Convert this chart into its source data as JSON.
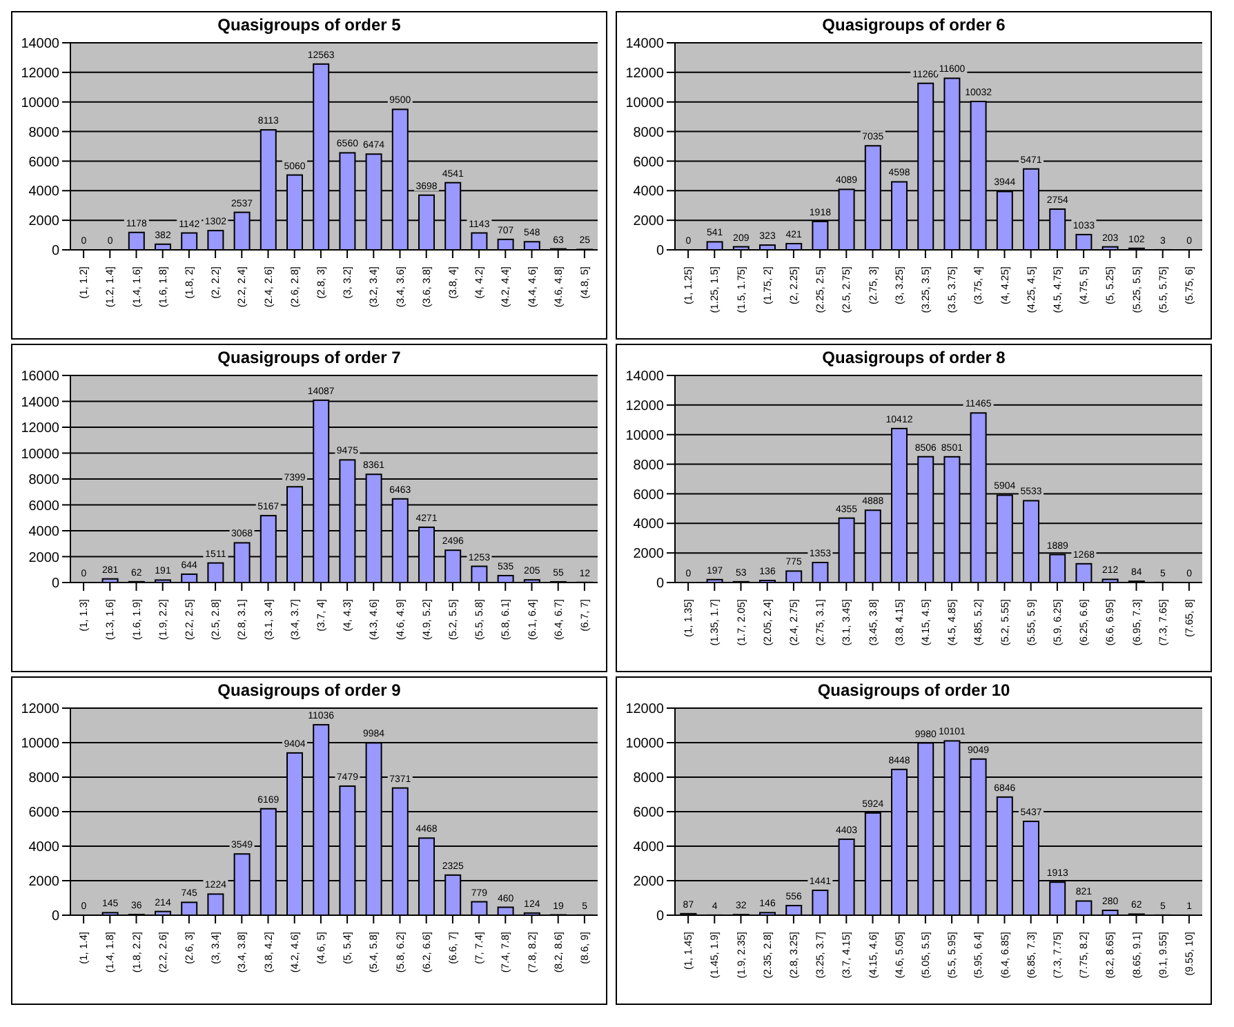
{
  "chart_data": [
    {
      "type": "bar",
      "title": "Quasigroups of order 5",
      "categories": [
        "(1, 1.2]",
        "(1.2, 1.4]",
        "(1.4, 1.6]",
        "(1.6, 1.8]",
        "(1.8, 2]",
        "(2, 2.2]",
        "(2.2, 2.4]",
        "(2.4, 2.6]",
        "(2.6, 2.8]",
        "(2.8, 3]",
        "(3, 3.2]",
        "(3.2, 3.4]",
        "(3.4, 3.6]",
        "(3.6, 3.8]",
        "(3.8, 4]",
        "(4, 4.2]",
        "(4.2, 4.4]",
        "(4.4, 4.6]",
        "(4.6, 4.8]",
        "(4.8, 5]"
      ],
      "values": [
        0,
        0,
        1178,
        382,
        1142,
        1302,
        2537,
        8113,
        5060,
        12563,
        6560,
        6474,
        9500,
        3698,
        4541,
        1143,
        707,
        548,
        63,
        25
      ],
      "color": "#9999ff",
      "ylim": [
        0,
        14000
      ],
      "yticks": [
        0,
        2000,
        4000,
        6000,
        8000,
        10000,
        12000,
        14000
      ],
      "grid": "y",
      "data_labels": true
    },
    {
      "type": "bar",
      "title": "Quasigroups of order 6",
      "categories": [
        "(1, 1.25]",
        "(1.25, 1.5]",
        "(1.5, 1.75]",
        "(1.75, 2]",
        "(2, 2.25]",
        "(2.25, 2.5]",
        "(2.5, 2.75]",
        "(2.75, 3]",
        "(3, 3.25]",
        "(3.25, 3.5]",
        "(3.5, 3.75]",
        "(3.75, 4]",
        "(4, 4.25]",
        "(4.25, 4.5]",
        "(4.5, 4.75]",
        "(4.75, 5]",
        "(5, 5.25]",
        "(5.25, 5.5]",
        "(5.5, 5.75]",
        "(5.75, 6]"
      ],
      "values": [
        0,
        541,
        209,
        323,
        421,
        1918,
        4089,
        7035,
        4598,
        11260,
        11600,
        10032,
        3944,
        5471,
        2754,
        1033,
        203,
        102,
        3,
        0
      ],
      "color": "#9999ff",
      "ylim": [
        0,
        14000
      ],
      "yticks": [
        0,
        2000,
        4000,
        6000,
        8000,
        10000,
        12000,
        14000
      ],
      "grid": "y",
      "data_labels": true
    },
    {
      "type": "bar",
      "title": "Quasigroups of order 7",
      "categories": [
        "(1, 1.3]",
        "(1.3, 1.6]",
        "(1.6, 1.9]",
        "(1.9, 2.2]",
        "(2.2, 2.5]",
        "(2.5, 2.8]",
        "(2.8, 3.1]",
        "(3.1, 3.4]",
        "(3.4, 3.7]",
        "(3.7, 4]",
        "(4, 4.3]",
        "(4.3, 4.6]",
        "(4.6, 4.9]",
        "(4.9, 5.2]",
        "(5.2, 5.5]",
        "(5.5, 5.8]",
        "(5.8, 6.1]",
        "(6.1, 6.4]",
        "(6.4, 6.7]",
        "(6.7, 7]"
      ],
      "values": [
        0,
        281,
        62,
        191,
        644,
        1511,
        3068,
        5167,
        7399,
        14087,
        9475,
        8361,
        6463,
        4271,
        2496,
        1253,
        535,
        205,
        55,
        12
      ],
      "color": "#9999ff",
      "ylim": [
        0,
        16000
      ],
      "yticks": [
        0,
        2000,
        4000,
        6000,
        8000,
        10000,
        12000,
        14000,
        16000
      ],
      "grid": "y",
      "data_labels": true
    },
    {
      "type": "bar",
      "title": "Quasigroups of order 8",
      "categories": [
        "(1, 1.35]",
        "(1.35, 1.7]",
        "(1.7, 2.05]",
        "(2.05, 2.4]",
        "(2.4, 2.75]",
        "(2.75, 3.1]",
        "(3.1, 3.45]",
        "(3.45, 3.8]",
        "(3.8, 4.15]",
        "(4.15, 4.5]",
        "(4.5, 4.85]",
        "(4.85, 5.2]",
        "(5.2, 5.55]",
        "(5.55, 5.9]",
        "(5.9, 6.25]",
        "(6.25, 6.6]",
        "(6.6, 6.95]",
        "(6.95, 7.3]",
        "(7.3, 7.65]",
        "(7.65, 8]"
      ],
      "values": [
        0,
        197,
        53,
        136,
        775,
        1353,
        4355,
        4888,
        10412,
        8506,
        8501,
        11465,
        5904,
        5533,
        1889,
        1268,
        212,
        84,
        5,
        0
      ],
      "color": "#9999ff",
      "ylim": [
        0,
        14000
      ],
      "yticks": [
        0,
        2000,
        4000,
        6000,
        8000,
        10000,
        12000,
        14000
      ],
      "grid": "y",
      "data_labels": true
    },
    {
      "type": "bar",
      "title": "Quasigroups of order 9",
      "categories": [
        "(1, 1.4]",
        "(1.4, 1.8]",
        "(1.8, 2.2]",
        "(2.2, 2.6]",
        "(2.6, 3]",
        "(3, 3.4]",
        "(3.4, 3.8]",
        "(3.8, 4.2]",
        "(4.2, 4.6]",
        "(4.6, 5]",
        "(5, 5.4]",
        "(5.4, 5.8]",
        "(5.8, 6.2]",
        "(6.2, 6.6]",
        "(6.6, 7]",
        "(7, 7.4]",
        "(7.4, 7.8]",
        "(7.8, 8.2]",
        "(8.2, 8.6]",
        "(8.6, 9]"
      ],
      "values": [
        0,
        145,
        36,
        214,
        745,
        1224,
        3549,
        6169,
        9404,
        11036,
        7479,
        9984,
        7371,
        4468,
        2325,
        779,
        460,
        124,
        19,
        5
      ],
      "color": "#9999ff",
      "ylim": [
        0,
        12000
      ],
      "yticks": [
        0,
        2000,
        4000,
        6000,
        8000,
        10000,
        12000
      ],
      "grid": "y",
      "data_labels": true
    },
    {
      "type": "bar",
      "title": "Quasigroups of order 10",
      "categories": [
        "(1, 1.45]",
        "(1.45, 1.9]",
        "(1.9, 2.35]",
        "(2.35, 2.8]",
        "(2.8, 3.25]",
        "(3.25, 3.7]",
        "(3.7, 4.15]",
        "(4.15, 4.6]",
        "(4.6, 5.05]",
        "(5.05, 5.5]",
        "(5.5, 5.95]",
        "(5.95, 6.4]",
        "(6.4, 6.85]",
        "(6.85, 7.3]",
        "(7.3, 7.75]",
        "(7.75, 8.2]",
        "(8.2, 8.65]",
        "(8.65, 9.1]",
        "(9.1, 9.55]",
        "(9.55, 10]"
      ],
      "values": [
        87,
        4,
        32,
        146,
        556,
        1441,
        4403,
        5924,
        8448,
        9980,
        10101,
        9049,
        6846,
        5437,
        1913,
        821,
        280,
        62,
        5,
        1
      ],
      "color": "#9999ff",
      "ylim": [
        0,
        12000
      ],
      "yticks": [
        0,
        2000,
        4000,
        6000,
        8000,
        10000,
        12000
      ],
      "grid": "y",
      "data_labels": true
    }
  ]
}
